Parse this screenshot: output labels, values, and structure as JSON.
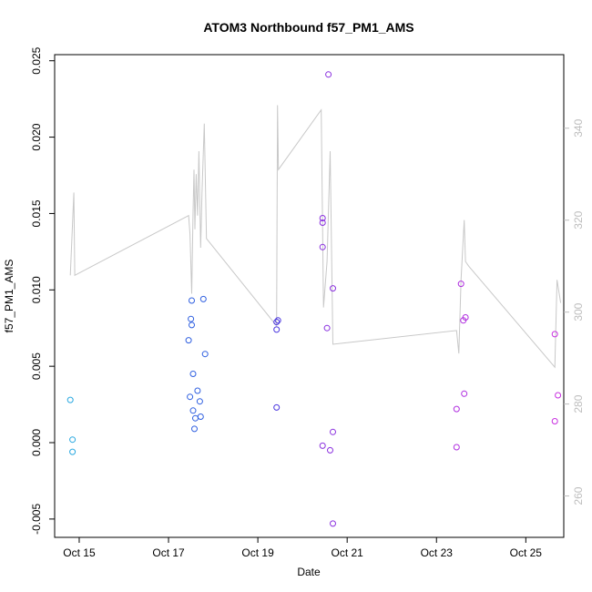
{
  "chart_data": {
    "type": "scatter",
    "title": "ATOM3 Northbound f57_PM1_AMS",
    "xlabel": "Date",
    "ylabel": "f57_PM1_AMS",
    "x_ticks": [
      "Oct 15",
      "Oct 17",
      "Oct 19",
      "Oct 21",
      "Oct 23",
      "Oct 25"
    ],
    "x_tick_days": [
      15,
      17,
      19,
      21,
      23,
      25
    ],
    "xlim_days": [
      14.45,
      25.85
    ],
    "y_ticks": [
      "-0.005",
      "0.000",
      "0.005",
      "0.010",
      "0.015",
      "0.020",
      "0.025"
    ],
    "y_tick_values": [
      -0.005,
      0.0,
      0.005,
      0.01,
      0.015,
      0.02,
      0.025
    ],
    "ylim": [
      -0.0062,
      0.0254
    ],
    "y2_ticks": [
      "260",
      "280",
      "300",
      "320",
      "340"
    ],
    "y2_tick_values": [
      260,
      280,
      300,
      320,
      340
    ],
    "y2lim": [
      251,
      356
    ],
    "grid": false,
    "legend": "none",
    "colors": {
      "points_early": "#29a8e0",
      "points_mid": "#2f5fe0",
      "points_late": "#c82ee0",
      "line": "#c8c8c8"
    },
    "points": [
      {
        "x": 14.8,
        "y": 0.0028,
        "color": "#29a8e0"
      },
      {
        "x": 14.85,
        "y": 0.0002,
        "color": "#29a8e0"
      },
      {
        "x": 14.85,
        "y": -0.0006,
        "color": "#29a8e0"
      },
      {
        "x": 17.45,
        "y": 0.0067,
        "color": "#2f5fe0"
      },
      {
        "x": 17.5,
        "y": 0.0081,
        "color": "#2f5fe0"
      },
      {
        "x": 17.52,
        "y": 0.0077,
        "color": "#2f5fe0"
      },
      {
        "x": 17.52,
        "y": 0.0093,
        "color": "#2f5fe0"
      },
      {
        "x": 17.48,
        "y": 0.003,
        "color": "#2f5fe0"
      },
      {
        "x": 17.55,
        "y": 0.0045,
        "color": "#2f5fe0"
      },
      {
        "x": 17.55,
        "y": 0.0021,
        "color": "#2f5fe0"
      },
      {
        "x": 17.6,
        "y": 0.0016,
        "color": "#2f5fe0"
      },
      {
        "x": 17.58,
        "y": 0.0009,
        "color": "#2f5fe0"
      },
      {
        "x": 17.65,
        "y": 0.0034,
        "color": "#2f5fe0"
      },
      {
        "x": 17.7,
        "y": 0.0027,
        "color": "#2f5fe0"
      },
      {
        "x": 17.72,
        "y": 0.0017,
        "color": "#2f5fe0"
      },
      {
        "x": 17.78,
        "y": 0.0094,
        "color": "#2f5fe0"
      },
      {
        "x": 17.82,
        "y": 0.0058,
        "color": "#2f5fe0"
      },
      {
        "x": 19.42,
        "y": 0.0079,
        "color": "#4a36df"
      },
      {
        "x": 19.45,
        "y": 0.008,
        "color": "#4a36df"
      },
      {
        "x": 19.42,
        "y": 0.0074,
        "color": "#4a36df"
      },
      {
        "x": 19.42,
        "y": 0.0023,
        "color": "#4a36df"
      },
      {
        "x": 20.45,
        "y": 0.0147,
        "color": "#8a30df"
      },
      {
        "x": 20.45,
        "y": 0.0144,
        "color": "#8a30df"
      },
      {
        "x": 20.45,
        "y": 0.0128,
        "color": "#8a30df"
      },
      {
        "x": 20.45,
        "y": -0.0002,
        "color": "#8a30df"
      },
      {
        "x": 20.55,
        "y": 0.0075,
        "color": "#8a30df"
      },
      {
        "x": 20.58,
        "y": 0.0241,
        "color": "#8a30df"
      },
      {
        "x": 20.62,
        "y": -0.0005,
        "color": "#8a30df"
      },
      {
        "x": 20.68,
        "y": 0.0101,
        "color": "#8a30df"
      },
      {
        "x": 20.68,
        "y": 0.0007,
        "color": "#8a30df"
      },
      {
        "x": 20.68,
        "y": -0.0053,
        "color": "#8a30df"
      },
      {
        "x": 23.45,
        "y": 0.0022,
        "color": "#b02ee0"
      },
      {
        "x": 23.45,
        "y": -0.0003,
        "color": "#b02ee0"
      },
      {
        "x": 23.55,
        "y": 0.0104,
        "color": "#b02ee0"
      },
      {
        "x": 23.6,
        "y": 0.008,
        "color": "#b02ee0"
      },
      {
        "x": 23.65,
        "y": 0.0082,
        "color": "#b02ee0"
      },
      {
        "x": 23.62,
        "y": 0.0032,
        "color": "#b02ee0"
      },
      {
        "x": 25.65,
        "y": 0.0071,
        "color": "#c82ee0"
      },
      {
        "x": 25.65,
        "y": 0.0014,
        "color": "#c82ee0"
      },
      {
        "x": 25.72,
        "y": 0.0031,
        "color": "#c82ee0"
      }
    ],
    "line": [
      {
        "x": 14.8,
        "y": 308
      },
      {
        "x": 14.88,
        "y": 326
      },
      {
        "x": 14.9,
        "y": 308
      },
      {
        "x": 17.45,
        "y": 321
      },
      {
        "x": 17.48,
        "y": 317
      },
      {
        "x": 17.52,
        "y": 304
      },
      {
        "x": 17.55,
        "y": 322
      },
      {
        "x": 17.57,
        "y": 331
      },
      {
        "x": 17.59,
        "y": 318
      },
      {
        "x": 17.62,
        "y": 330
      },
      {
        "x": 17.65,
        "y": 321
      },
      {
        "x": 17.68,
        "y": 335
      },
      {
        "x": 17.72,
        "y": 314
      },
      {
        "x": 17.75,
        "y": 326
      },
      {
        "x": 17.8,
        "y": 341
      },
      {
        "x": 17.85,
        "y": 316
      },
      {
        "x": 19.42,
        "y": 297
      },
      {
        "x": 19.44,
        "y": 345
      },
      {
        "x": 19.46,
        "y": 331
      },
      {
        "x": 20.42,
        "y": 344
      },
      {
        "x": 20.47,
        "y": 301
      },
      {
        "x": 20.55,
        "y": 311
      },
      {
        "x": 20.62,
        "y": 335
      },
      {
        "x": 20.68,
        "y": 293
      },
      {
        "x": 23.45,
        "y": 296
      },
      {
        "x": 23.5,
        "y": 291
      },
      {
        "x": 23.55,
        "y": 307
      },
      {
        "x": 23.62,
        "y": 320
      },
      {
        "x": 23.65,
        "y": 311
      },
      {
        "x": 23.72,
        "y": 310
      },
      {
        "x": 25.65,
        "y": 288
      },
      {
        "x": 25.7,
        "y": 307
      },
      {
        "x": 25.78,
        "y": 302
      }
    ]
  }
}
